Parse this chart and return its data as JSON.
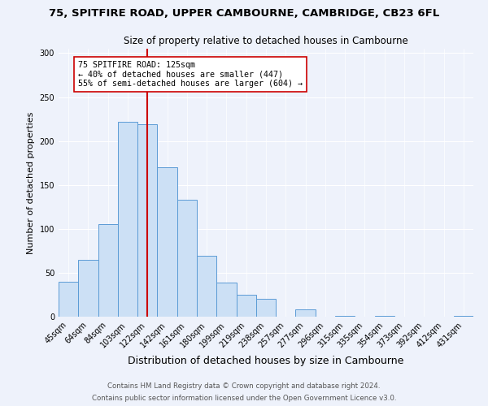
{
  "title1": "75, SPITFIRE ROAD, UPPER CAMBOURNE, CAMBRIDGE, CB23 6FL",
  "title2": "Size of property relative to detached houses in Cambourne",
  "xlabel": "Distribution of detached houses by size in Cambourne",
  "ylabel": "Number of detached properties",
  "footer1": "Contains HM Land Registry data © Crown copyright and database right 2024.",
  "footer2": "Contains public sector information licensed under the Open Government Licence v3.0.",
  "bar_labels": [
    "45sqm",
    "64sqm",
    "84sqm",
    "103sqm",
    "122sqm",
    "142sqm",
    "161sqm",
    "180sqm",
    "199sqm",
    "219sqm",
    "238sqm",
    "257sqm",
    "277sqm",
    "296sqm",
    "315sqm",
    "335sqm",
    "354sqm",
    "373sqm",
    "392sqm",
    "412sqm",
    "431sqm"
  ],
  "bar_values": [
    40,
    65,
    105,
    222,
    219,
    170,
    133,
    69,
    39,
    25,
    20,
    0,
    8,
    0,
    1,
    0,
    1,
    0,
    0,
    0,
    1
  ],
  "bar_color": "#cce0f5",
  "bar_edge_color": "#5b9bd5",
  "vline_x_index": 4,
  "vline_color": "#cc0000",
  "annotation_title": "75 SPITFIRE ROAD: 125sqm",
  "annotation_line1": "← 40% of detached houses are smaller (447)",
  "annotation_line2": "55% of semi-detached houses are larger (604) →",
  "annotation_box_color": "#ffffff",
  "annotation_box_edge": "#cc0000",
  "ylim": [
    0,
    305
  ],
  "yticks": [
    0,
    50,
    100,
    150,
    200,
    250,
    300
  ],
  "background_color": "#eef2fb",
  "grid_color": "#ffffff",
  "title1_fontsize": 9.5,
  "title2_fontsize": 8.5,
  "ylabel_fontsize": 8,
  "xlabel_fontsize": 9,
  "tick_fontsize": 7,
  "footer_fontsize": 6.2
}
